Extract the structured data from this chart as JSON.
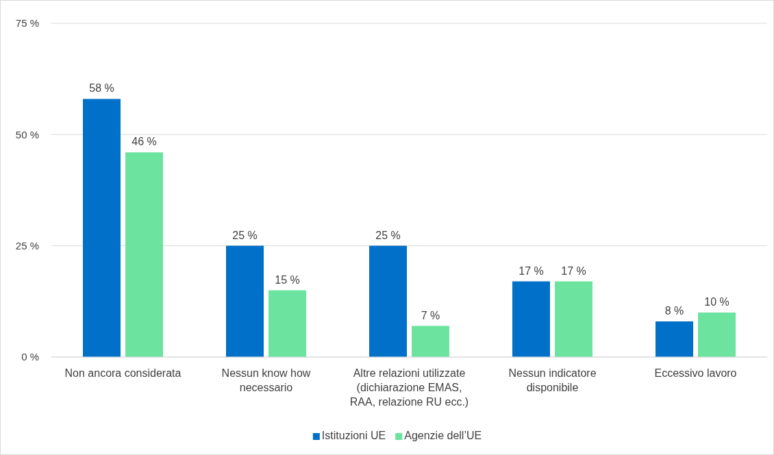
{
  "chart_data": {
    "type": "bar",
    "categories": [
      "Non ancora considerata",
      "Nessun know how\nnecessario",
      "Altre relazioni utilizzate\n(dichiarazione EMAS,\nRAA, relazione RU ecc.)",
      "Nessun indicatore\ndisponibile",
      "Eccessivo lavoro"
    ],
    "series": [
      {
        "name": "Istituzioni UE",
        "color": "#0070c8",
        "values": [
          58,
          25,
          25,
          17,
          8
        ],
        "value_labels": [
          "58 %",
          "25 %",
          "25 %",
          "17 %",
          "8 %"
        ]
      },
      {
        "name": "Agenzie dell’UE",
        "color": "#6ce4a0",
        "values": [
          46,
          15,
          7,
          17,
          10
        ],
        "value_labels": [
          "46 %",
          "15 %",
          "7 %",
          "17 %",
          "10 %"
        ]
      }
    ],
    "ylim": [
      0,
      75
    ],
    "yticks": [
      {
        "value": 0,
        "label": "0 %"
      },
      {
        "value": 25,
        "label": "25 %"
      },
      {
        "value": 50,
        "label": "50 %"
      },
      {
        "value": 75,
        "label": "75 %"
      }
    ],
    "grid": "y",
    "legend": "bottom"
  }
}
